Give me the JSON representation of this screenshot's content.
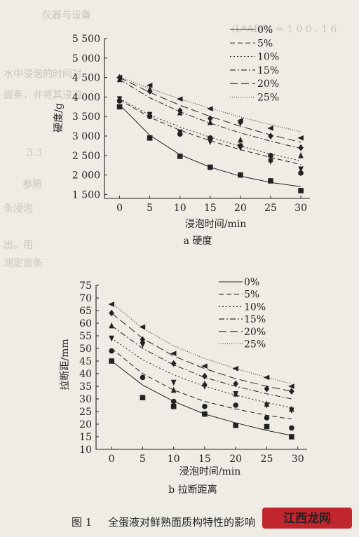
{
  "background_text": [
    "仪器与设备",
    "(L*ABC) = 1 0 0 . 1 6",
    "水中浸泡的时间对",
    "面条，并将其浸泡",
    "3.3",
    "参照",
    "条浸泡",
    "出。用",
    "测定面条"
  ],
  "charts": [
    {
      "subcaption": "a  硬度",
      "chart_data": {
        "type": "line",
        "xlabel": "浸泡时间/min",
        "ylabel": "硬度/g",
        "x": [
          0,
          5,
          10,
          15,
          20,
          25,
          30
        ],
        "xticks": [
          "0",
          "5",
          "10",
          "15",
          "20",
          "25",
          "30"
        ],
        "xlim": [
          -2.5,
          31.5
        ],
        "ylim": [
          1400,
          5500
        ],
        "yticks": [
          1500,
          2000,
          2500,
          3000,
          3500,
          4000,
          4500,
          5000,
          5500
        ],
        "ytick_labels": [
          "1 500",
          "2 000",
          "2 500",
          "3 000",
          "3 500",
          "4 000",
          "4 500",
          "5 000",
          "5 500"
        ],
        "legend_position": "top-right",
        "series": [
          {
            "name": "0%",
            "marker": "square",
            "dash": "solid",
            "values": [
              3750,
              2950,
              2480,
              2200,
              2000,
              1850,
              1600
            ],
            "fit": [
              3800,
              3020,
              2520,
              2200,
              1970,
              1810,
              1700
            ]
          },
          {
            "name": "5%",
            "marker": "circle",
            "dash": "dash",
            "values": [
              3900,
              3500,
              3050,
              2950,
              2750,
              2500,
              2050
            ],
            "fit": [
              3930,
              3480,
              3150,
              2880,
              2650,
              2450,
              2270
            ]
          },
          {
            "name": "10%",
            "marker": "downtriangle",
            "dash": "dot",
            "values": [
              3950,
              3550,
              3100,
              2850,
              2700,
              2350,
              2150
            ],
            "fit": [
              3960,
              3540,
              3230,
              2970,
              2740,
              2540,
              2360
            ]
          },
          {
            "name": "15%",
            "marker": "triangle",
            "dash": "dashdot",
            "values": [
              4450,
              4200,
              3600,
              3350,
              2900,
              2400,
              2500
            ],
            "fit": [
              4450,
              3980,
              3620,
              3330,
              3080,
              2870,
              2680
            ]
          },
          {
            "name": "20%",
            "marker": "diamond",
            "dash": "longdash",
            "values": [
              4500,
              4150,
              3650,
              3450,
              3350,
              3000,
              2700
            ],
            "fit": [
              4500,
              4120,
              3790,
              3500,
              3250,
              3030,
              2840
            ]
          },
          {
            "name": "25%",
            "marker": "lefttriangle",
            "dash": "finedot",
            "values": [
              4500,
              4300,
              3950,
              3700,
              3400,
              3200,
              2950
            ],
            "fit": [
              4520,
              4220,
              3950,
              3710,
              3490,
              3290,
              3110
            ]
          }
        ]
      }
    },
    {
      "subcaption": "b  拉断距离",
      "chart_data": {
        "type": "line",
        "xlabel": "浸泡时间/min",
        "ylabel": "拉断距/mm",
        "x": [
          0,
          5,
          10,
          15,
          20,
          25,
          29
        ],
        "xticks": [
          "0",
          "5",
          "10",
          "15",
          "20",
          "25",
          "30"
        ],
        "xtick_values": [
          0,
          5,
          10,
          15,
          20,
          25,
          30
        ],
        "xlim": [
          -2.5,
          31.5
        ],
        "ylim": [
          10,
          75
        ],
        "yticks": [
          10,
          15,
          20,
          25,
          30,
          35,
          40,
          45,
          50,
          55,
          60,
          65,
          70,
          75
        ],
        "ytick_labels": [
          "10",
          "15",
          "20",
          "25",
          "30",
          "35",
          "40",
          "45",
          "50",
          "55",
          "60",
          "65",
          "70",
          "75"
        ],
        "legend_position": "top-right",
        "series": [
          {
            "name": "0%",
            "marker": "square",
            "dash": "solid",
            "values": [
              45,
              30.5,
              27,
              24,
              19.5,
              19,
              15
            ],
            "fit": [
              45,
              35.5,
              29,
              24,
              20.5,
              17.5,
              15.5
            ]
          },
          {
            "name": "5%",
            "marker": "circle",
            "dash": "dash",
            "values": [
              49,
              38.5,
              29,
              27,
              27.5,
              22.5,
              18.5
            ],
            "fit": [
              50,
              40,
              33.5,
              29,
              26,
              23.5,
              22
            ]
          },
          {
            "name": "10%",
            "marker": "downtriangle",
            "dash": "dot",
            "values": [
              54,
              51.5,
              36.5,
              35,
              32,
              27.5,
              25.5
            ],
            "fit": [
              54,
              45.5,
              39.5,
              35,
              31.5,
              28.5,
              26.5
            ]
          },
          {
            "name": "15%",
            "marker": "triangle",
            "dash": "dashdot",
            "values": [
              59,
              53,
              33.5,
              36,
              32,
              28,
              26
            ],
            "fit": [
              59,
              50,
              43.5,
              38.5,
              35,
              32,
              30
            ]
          },
          {
            "name": "20%",
            "marker": "diamond",
            "dash": "longdash",
            "values": [
              64,
              53.5,
              44,
              39,
              36,
              34,
              33
            ],
            "fit": [
              64,
              54,
              47,
              42,
              38,
              35,
              33
            ]
          },
          {
            "name": "25%",
            "marker": "lefttriangle",
            "dash": "finedot",
            "values": [
              67.5,
              58.5,
              48,
              43,
              42,
              38.5,
              35
            ],
            "fit": [
              68,
              58,
              51,
              46,
              42,
              38.5,
              36
            ]
          }
        ]
      }
    }
  ],
  "caption": {
    "label": "图 1",
    "text": "全蛋液对鲜熟面质构特性的影响"
  },
  "watermark": "江西龙网",
  "colors": {
    "background": "#efece6",
    "ink": "#222222",
    "watermark_red": "#c0262c"
  }
}
